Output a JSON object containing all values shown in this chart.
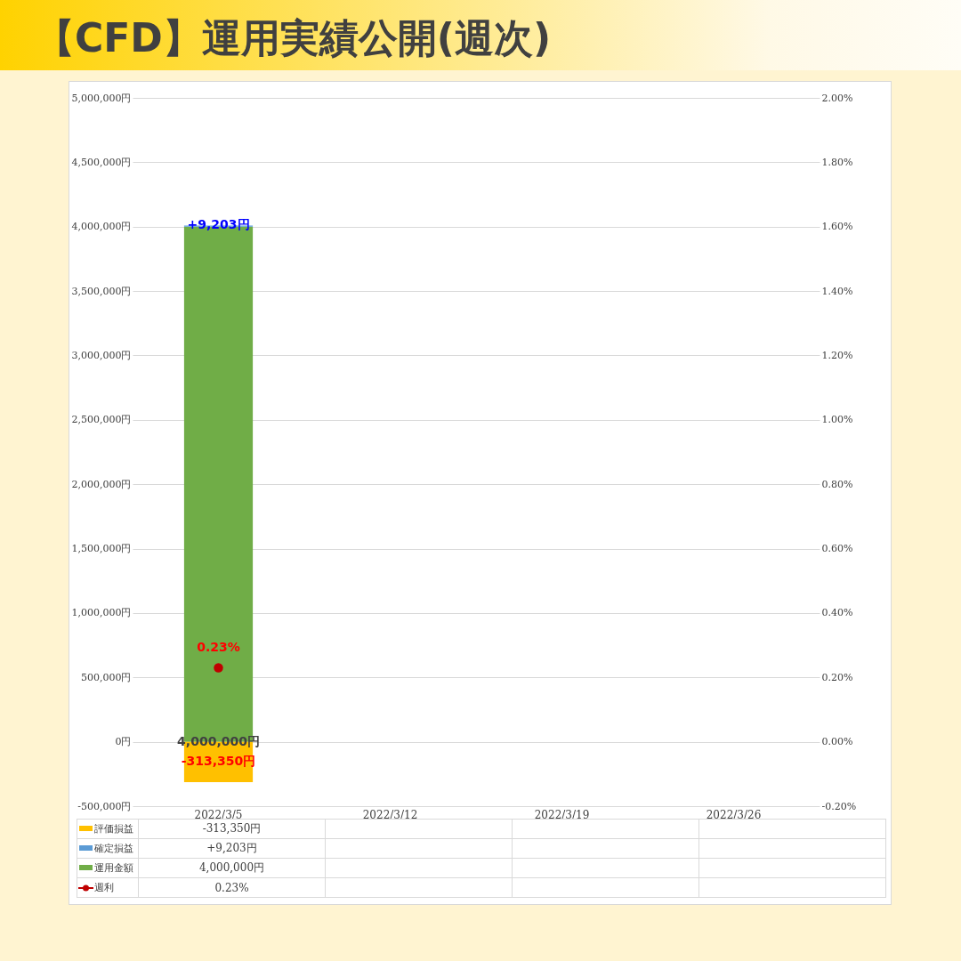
{
  "chart_data": {
    "type": "bar",
    "title": "【CFD】運用実績公開(週次)",
    "categories": [
      "2022/3/5",
      "2022/3/12",
      "2022/3/19",
      "2022/3/26"
    ],
    "stacked": true,
    "series": [
      {
        "name": "運用金額",
        "color": "#70ad47",
        "values": [
          4000000,
          null,
          null,
          null
        ],
        "value_labels": [
          "4,000,000円",
          null,
          null,
          null
        ]
      },
      {
        "name": "確定損益",
        "color": "#5b9bd5",
        "values": [
          9203,
          null,
          null,
          null
        ],
        "value_labels": [
          "+9,203円",
          null,
          null,
          null
        ]
      },
      {
        "name": "評価損益",
        "color": "#ffc000",
        "values": [
          -313350,
          null,
          null,
          null
        ],
        "value_labels": [
          "-313,350円",
          null,
          null,
          null
        ]
      },
      {
        "name": "週利",
        "type": "line",
        "axis": "y2",
        "color": "#c00000",
        "values": [
          0.23,
          null,
          null,
          null
        ],
        "value_labels": [
          "0.23%",
          null,
          null,
          null
        ]
      }
    ],
    "ylim": [
      -500000,
      5000000
    ],
    "yticks": [
      {
        "value": -500000,
        "label": "-500,000円"
      },
      {
        "value": 0,
        "label": "0円"
      },
      {
        "value": 500000,
        "label": "500,000円"
      },
      {
        "value": 1000000,
        "label": "1,000,000円"
      },
      {
        "value": 1500000,
        "label": "1,500,000円"
      },
      {
        "value": 2000000,
        "label": "2,000,000円"
      },
      {
        "value": 2500000,
        "label": "2,500,000円"
      },
      {
        "value": 3000000,
        "label": "3,000,000円"
      },
      {
        "value": 3500000,
        "label": "3,500,000円"
      },
      {
        "value": 4000000,
        "label": "4,000,000円"
      },
      {
        "value": 4500000,
        "label": "4,500,000円"
      },
      {
        "value": 5000000,
        "label": "5,000,000円"
      }
    ],
    "y2lim": [
      -0.2,
      2.0
    ],
    "y2ticks": [
      {
        "value": -0.2,
        "label": "-0.20%"
      },
      {
        "value": 0,
        "label": "0.00%"
      },
      {
        "value": 0.2,
        "label": "0.20%"
      },
      {
        "value": 0.4,
        "label": "0.40%"
      },
      {
        "value": 0.6,
        "label": "0.60%"
      },
      {
        "value": 0.8,
        "label": "0.80%"
      },
      {
        "value": 1.0,
        "label": "1.00%"
      },
      {
        "value": 1.2,
        "label": "1.20%"
      },
      {
        "value": 1.4,
        "label": "1.40%"
      },
      {
        "value": 1.6,
        "label": "1.60%"
      },
      {
        "value": 1.8,
        "label": "1.80%"
      },
      {
        "value": 2.0,
        "label": "2.00%"
      }
    ],
    "grid": "y",
    "legend": "bottom",
    "marker": "circle"
  }
}
